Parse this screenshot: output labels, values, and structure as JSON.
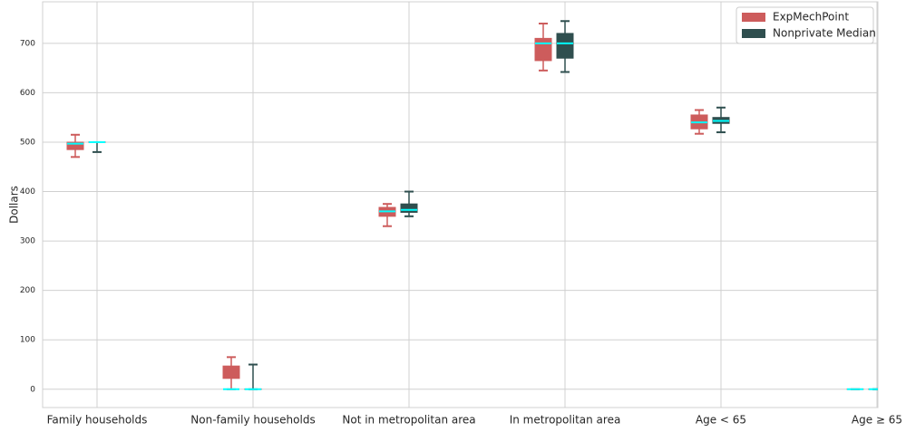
{
  "chart_data": {
    "type": "box",
    "y_label": "Dollars",
    "categories": [
      "Family households",
      "Non-family households",
      "Not in metropolitan area",
      "In metropolitan area",
      "Age < 65",
      "Age  ≥  65"
    ],
    "series": [
      {
        "name": "ExpMechPoint",
        "color": "#cd5c5c",
        "min": [
          470,
          0,
          330,
          645,
          517,
          0
        ],
        "q1": [
          485,
          22,
          350,
          665,
          527,
          0
        ],
        "median": [
          497,
          0,
          360,
          700,
          540,
          0
        ],
        "q3": [
          500,
          47,
          368,
          710,
          555,
          0
        ],
        "max": [
          515,
          65,
          375,
          740,
          565,
          0
        ]
      },
      {
        "name": "Nonprivate Median",
        "color": "#2f4f4f",
        "min": [
          480,
          0,
          350,
          642,
          520,
          0
        ],
        "q1": [
          500,
          0,
          358,
          670,
          538,
          0
        ],
        "median": [
          500,
          0,
          363,
          700,
          543,
          0
        ],
        "q3": [
          500,
          0,
          375,
          720,
          550,
          0
        ],
        "max": [
          500,
          50,
          400,
          745,
          570,
          0
        ]
      }
    ],
    "median_color": "#00ffff",
    "ylim": [
      -37,
      784
    ],
    "yticks": [
      0,
      100,
      200,
      300,
      400,
      500,
      600,
      700
    ],
    "grid": true,
    "legend": "upper right"
  }
}
